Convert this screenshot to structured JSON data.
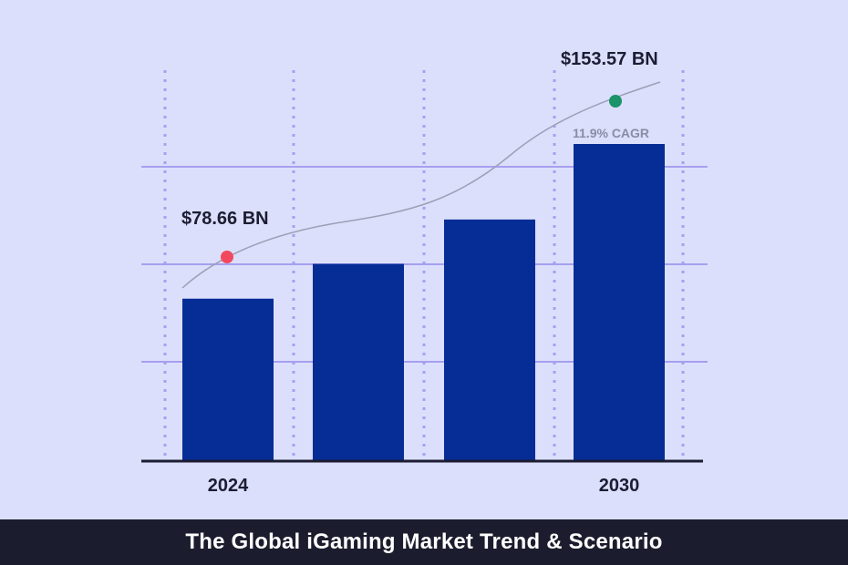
{
  "chart_data": {
    "type": "bar",
    "title": "The Global iGaming Market Trend & Scenario",
    "categories": [
      "2024",
      "",
      "",
      "2030"
    ],
    "values": [
      78.66,
      95.5,
      117.0,
      153.57
    ],
    "ylim": [
      0,
      180
    ],
    "grid": true,
    "annotations": {
      "start_value": "$78.66 BN",
      "end_value": "$153.57 BN",
      "growth": "11.9% CAGR"
    }
  },
  "colors": {
    "background": "#dcdffb",
    "bar": "#062c96",
    "grid": "#a79ff0",
    "trend_line": "#9c9fb5",
    "start_dot": "#f2485d",
    "end_dot": "#1c9368",
    "footer": "#1b1d2e"
  }
}
